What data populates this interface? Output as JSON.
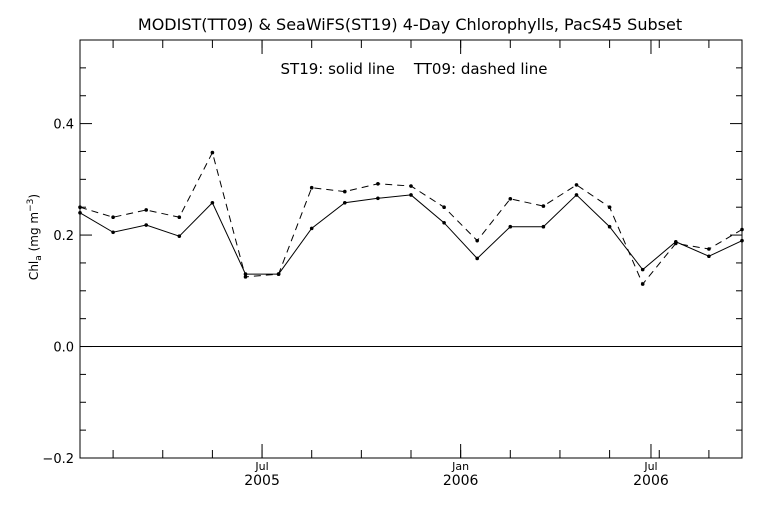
{
  "chart_data": {
    "type": "line",
    "title": "MODIST(TT09) & SeaWiFS(ST19) 4-Day Chlorophylls, PacS45 Subset",
    "annotation": "ST19: solid line    TT09: dashed line",
    "ylabel": "Chl_a (mg m^-3)",
    "ylabel_parts": {
      "base": "Chl",
      "sub": "a",
      "mid": " (mg m",
      "sup": "−3",
      "end": ")"
    },
    "xlabel": "",
    "ylim": [
      -0.2,
      0.55
    ],
    "yticks": [
      "−0.2",
      "0.0",
      "0.2",
      "0.4"
    ],
    "xticks": [
      {
        "month": "Jul",
        "year": "2005"
      },
      {
        "month": "Jan",
        "year": "2006"
      },
      {
        "month": "Jul",
        "year": "2006"
      }
    ],
    "zero_line": true,
    "series": [
      {
        "name": "ST19",
        "style": "solid",
        "values": [
          0.24,
          0.205,
          0.218,
          0.198,
          0.258,
          0.13,
          0.13,
          0.212,
          0.258,
          0.266,
          0.272,
          0.222,
          0.158,
          0.215,
          0.215,
          0.272,
          0.215,
          0.138,
          0.188,
          0.162,
          0.19
        ]
      },
      {
        "name": "TT09",
        "style": "dashed",
        "values": [
          0.25,
          0.232,
          0.245,
          0.232,
          0.348,
          0.125,
          0.13,
          0.285,
          0.278,
          0.292,
          0.288,
          0.25,
          0.19,
          0.265,
          0.252,
          0.29,
          0.25,
          0.112,
          0.185,
          0.175,
          0.21
        ]
      }
    ]
  }
}
